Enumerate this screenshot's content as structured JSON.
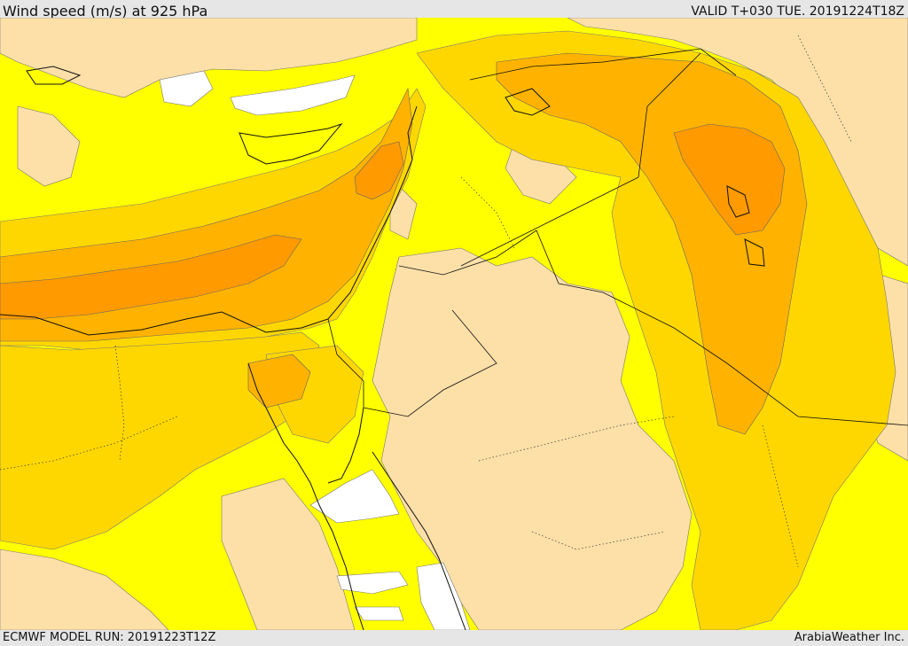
{
  "header": {
    "title": "Wind speed (m/s) at 925 hPa",
    "valid_time": "VALID T+030 TUE. 20191224T18Z"
  },
  "footer": {
    "model_run": "ECMWF MODEL RUN: 20191223T12Z",
    "credit": "ArabiaWeather Inc."
  },
  "colors": {
    "calm": "#ffffff",
    "light": "#fde0a8",
    "moderate": "#ffff00",
    "fresh": "#ffd700",
    "strong": "#ffb300",
    "very_strong": "#ff9a00",
    "contour": "#555555",
    "border": "#111111"
  }
}
